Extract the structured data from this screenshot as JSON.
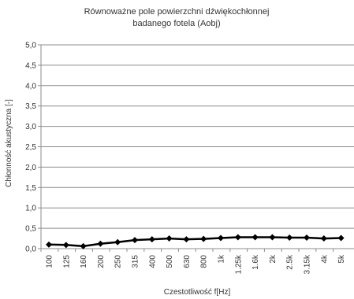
{
  "chart_data": {
    "type": "line",
    "title_lines": [
      "Równoważne pole powierzchni dźwiękochłonnej",
      "badanego fotela (Aobj)"
    ],
    "xlabel": "Czestotliwość f[Hz]",
    "ylabel": "Chłonność akustyczna [-]",
    "ylim": [
      0,
      5
    ],
    "y_ticks": [
      "0,0",
      "0,5",
      "1,0",
      "1,5",
      "2,0",
      "2,5",
      "3,0",
      "3,5",
      "4,0",
      "4,5",
      "5,0"
    ],
    "categories": [
      "100",
      "125",
      "160",
      "200",
      "250",
      "315",
      "400",
      "500",
      "630",
      "800",
      "1k",
      "1.25k",
      "1.6k",
      "2k",
      "2.5k",
      "3.15k",
      "4k",
      "5k"
    ],
    "series": [
      {
        "values": [
          0.1,
          0.09,
          0.06,
          0.12,
          0.16,
          0.21,
          0.23,
          0.25,
          0.23,
          0.24,
          0.26,
          0.28,
          0.28,
          0.28,
          0.27,
          0.27,
          0.25,
          0.26
        ],
        "color": "#000000",
        "marker": "diamond"
      }
    ],
    "grid": true,
    "legend": "none"
  }
}
